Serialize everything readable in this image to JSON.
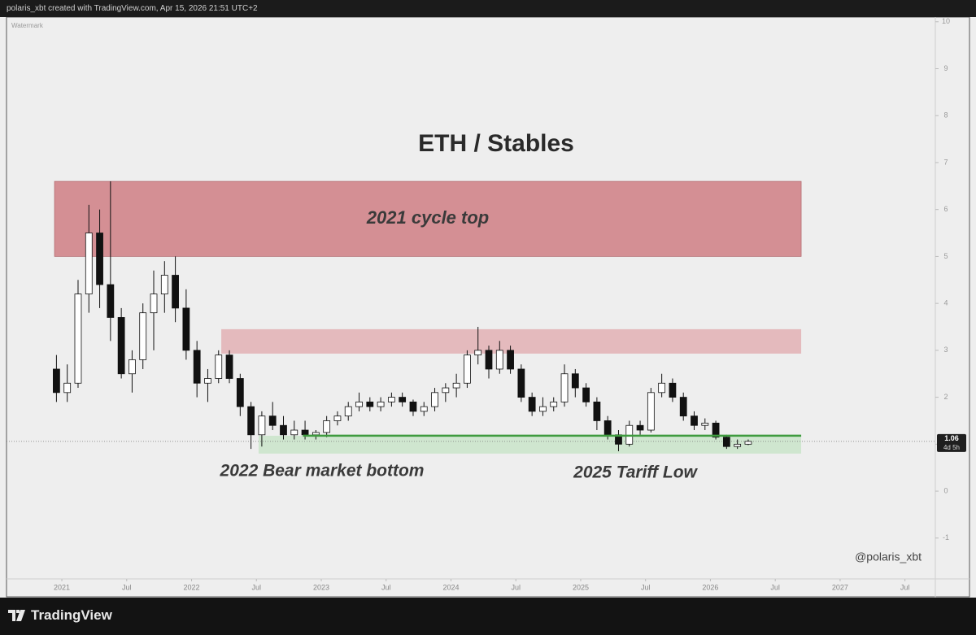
{
  "header": {
    "text": "polaris_xbt created with TradingView.com, Apr 15, 2026 21:51 UTC+2"
  },
  "brand": "TradingView",
  "chart_data": {
    "type": "candlestick",
    "title": "ETH / Stables",
    "watermark": "Watermark",
    "signature": "@polaris_xbt",
    "ylim": [
      -1.87,
      10.1
    ],
    "yticks": [
      -1,
      0,
      1,
      2,
      3,
      4,
      5,
      6,
      7,
      8,
      9,
      10
    ],
    "xlim": [
      -4.62,
      81.31
    ],
    "xticks": [
      {
        "value": 0.5,
        "label": "2021"
      },
      {
        "value": 6.5,
        "label": "Jul"
      },
      {
        "value": 12.5,
        "label": "2022"
      },
      {
        "value": 18.5,
        "label": "Jul"
      },
      {
        "value": 24.5,
        "label": "2023"
      },
      {
        "value": 30.5,
        "label": "Jul"
      },
      {
        "value": 36.5,
        "label": "2024"
      },
      {
        "value": 42.5,
        "label": "Jul"
      },
      {
        "value": 48.5,
        "label": "2025"
      },
      {
        "value": 54.5,
        "label": "Jul"
      },
      {
        "value": 60.5,
        "label": "2026"
      },
      {
        "value": 66.5,
        "label": "Jul"
      },
      {
        "value": 72.5,
        "label": "2027"
      },
      {
        "value": 78.5,
        "label": "Jul"
      }
    ],
    "up_color": "#ffffff",
    "down_color": "#111111",
    "ohlc": [
      [
        2.6,
        2.9,
        1.9,
        2.1
      ],
      [
        2.1,
        2.7,
        1.9,
        2.3
      ],
      [
        2.3,
        4.5,
        2.2,
        4.2
      ],
      [
        4.2,
        6.1,
        3.8,
        5.5
      ],
      [
        5.5,
        6.0,
        3.9,
        4.4
      ],
      [
        4.4,
        6.6,
        3.2,
        3.7
      ],
      [
        3.7,
        3.9,
        2.4,
        2.5
      ],
      [
        2.5,
        3.0,
        2.1,
        2.8
      ],
      [
        2.8,
        4.0,
        2.6,
        3.8
      ],
      [
        3.8,
        4.7,
        3.0,
        4.2
      ],
      [
        4.2,
        4.9,
        3.8,
        4.6
      ],
      [
        4.6,
        5.0,
        3.6,
        3.9
      ],
      [
        3.9,
        4.3,
        2.8,
        3.0
      ],
      [
        3.0,
        3.2,
        2.0,
        2.3
      ],
      [
        2.3,
        2.6,
        1.9,
        2.4
      ],
      [
        2.4,
        3.0,
        2.3,
        2.9
      ],
      [
        2.9,
        3.0,
        2.3,
        2.4
      ],
      [
        2.4,
        2.5,
        1.6,
        1.8
      ],
      [
        1.8,
        1.9,
        0.9,
        1.2
      ],
      [
        1.2,
        1.7,
        0.95,
        1.6
      ],
      [
        1.6,
        1.9,
        1.3,
        1.4
      ],
      [
        1.4,
        1.6,
        1.1,
        1.2
      ],
      [
        1.2,
        1.5,
        1.1,
        1.3
      ],
      [
        1.3,
        1.5,
        1.1,
        1.2
      ],
      [
        1.2,
        1.3,
        1.1,
        1.25
      ],
      [
        1.25,
        1.6,
        1.15,
        1.5
      ],
      [
        1.5,
        1.7,
        1.4,
        1.6
      ],
      [
        1.6,
        1.9,
        1.5,
        1.8
      ],
      [
        1.8,
        2.1,
        1.7,
        1.9
      ],
      [
        1.9,
        2.0,
        1.7,
        1.8
      ],
      [
        1.8,
        2.0,
        1.7,
        1.9
      ],
      [
        1.9,
        2.1,
        1.8,
        2.0
      ],
      [
        2.0,
        2.1,
        1.8,
        1.9
      ],
      [
        1.9,
        1.95,
        1.6,
        1.7
      ],
      [
        1.7,
        1.9,
        1.6,
        1.8
      ],
      [
        1.8,
        2.2,
        1.7,
        2.1
      ],
      [
        2.1,
        2.3,
        1.9,
        2.2
      ],
      [
        2.2,
        2.5,
        2.0,
        2.3
      ],
      [
        2.3,
        3.0,
        2.2,
        2.9
      ],
      [
        2.9,
        3.5,
        2.7,
        3.0
      ],
      [
        3.0,
        3.1,
        2.4,
        2.6
      ],
      [
        2.6,
        3.2,
        2.5,
        3.0
      ],
      [
        3.0,
        3.1,
        2.5,
        2.6
      ],
      [
        2.6,
        2.7,
        1.9,
        2.0
      ],
      [
        2.0,
        2.1,
        1.6,
        1.7
      ],
      [
        1.7,
        2.0,
        1.6,
        1.8
      ],
      [
        1.8,
        2.0,
        1.7,
        1.9
      ],
      [
        1.9,
        2.7,
        1.8,
        2.5
      ],
      [
        2.5,
        2.6,
        2.0,
        2.2
      ],
      [
        2.2,
        2.3,
        1.8,
        1.9
      ],
      [
        1.9,
        2.0,
        1.3,
        1.5
      ],
      [
        1.5,
        1.6,
        1.1,
        1.2
      ],
      [
        1.2,
        1.3,
        0.85,
        1.0
      ],
      [
        1.0,
        1.5,
        0.95,
        1.4
      ],
      [
        1.4,
        1.5,
        1.2,
        1.3
      ],
      [
        1.3,
        2.2,
        1.25,
        2.1
      ],
      [
        2.1,
        2.5,
        2.0,
        2.3
      ],
      [
        2.3,
        2.4,
        1.9,
        2.0
      ],
      [
        2.0,
        2.1,
        1.5,
        1.6
      ],
      [
        1.6,
        1.7,
        1.3,
        1.4
      ],
      [
        1.4,
        1.55,
        1.3,
        1.45
      ],
      [
        1.45,
        1.5,
        1.1,
        1.15
      ],
      [
        1.15,
        1.2,
        0.9,
        0.95
      ],
      [
        0.95,
        1.1,
        0.9,
        1.0
      ],
      [
        1.0,
        1.1,
        0.98,
        1.06
      ]
    ],
    "zones": [
      {
        "label": "2021 cycle top",
        "x": [
          -0.18,
          68.9
        ],
        "y": [
          5.0,
          6.6
        ],
        "color": "#c9666e"
      },
      {
        "x": [
          15.25,
          68.9
        ],
        "y": [
          2.93,
          3.45
        ],
        "color": "#dc8f95"
      },
      {
        "x": [
          18.7,
          68.9
        ],
        "y": [
          0.8,
          1.18
        ],
        "color": "#b7e0b7"
      }
    ],
    "support_line": {
      "x": [
        22.8,
        68.9
      ],
      "y": 1.18,
      "color": "#3f9b3f"
    },
    "annotations": [
      "2022 Bear market bottom",
      "2025 Tariff Low"
    ],
    "last_price": 1.06,
    "countdown": "4d 5h"
  }
}
